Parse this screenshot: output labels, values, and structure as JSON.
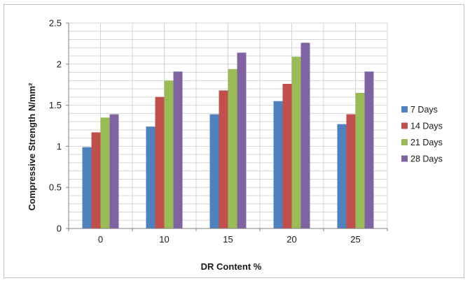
{
  "chart_data": {
    "type": "bar",
    "title": "",
    "xlabel": "DR Content %",
    "ylabel": "Compressive Strength N/mm²",
    "categories": [
      "0",
      "10",
      "15",
      "20",
      "25"
    ],
    "ylim": [
      0,
      2.5
    ],
    "yticks": [
      "0",
      "0.5",
      "1",
      "1.5",
      "2",
      "2.5"
    ],
    "ytick_values": [
      0,
      0.5,
      1,
      1.5,
      2,
      2.5
    ],
    "grid": true,
    "legend_position": "right",
    "series": [
      {
        "name": "7 Days",
        "color": "#4f81bd",
        "values": [
          0.99,
          1.24,
          1.39,
          1.55,
          1.27
        ]
      },
      {
        "name": "14 Days",
        "color": "#c0504d",
        "values": [
          1.17,
          1.6,
          1.68,
          1.76,
          1.39
        ]
      },
      {
        "name": "21 Days",
        "color": "#9bbb59",
        "values": [
          1.35,
          1.8,
          1.94,
          2.09,
          1.65
        ]
      },
      {
        "name": "28 Days",
        "color": "#8064a2",
        "values": [
          1.39,
          1.91,
          2.14,
          2.26,
          1.91
        ]
      }
    ]
  }
}
